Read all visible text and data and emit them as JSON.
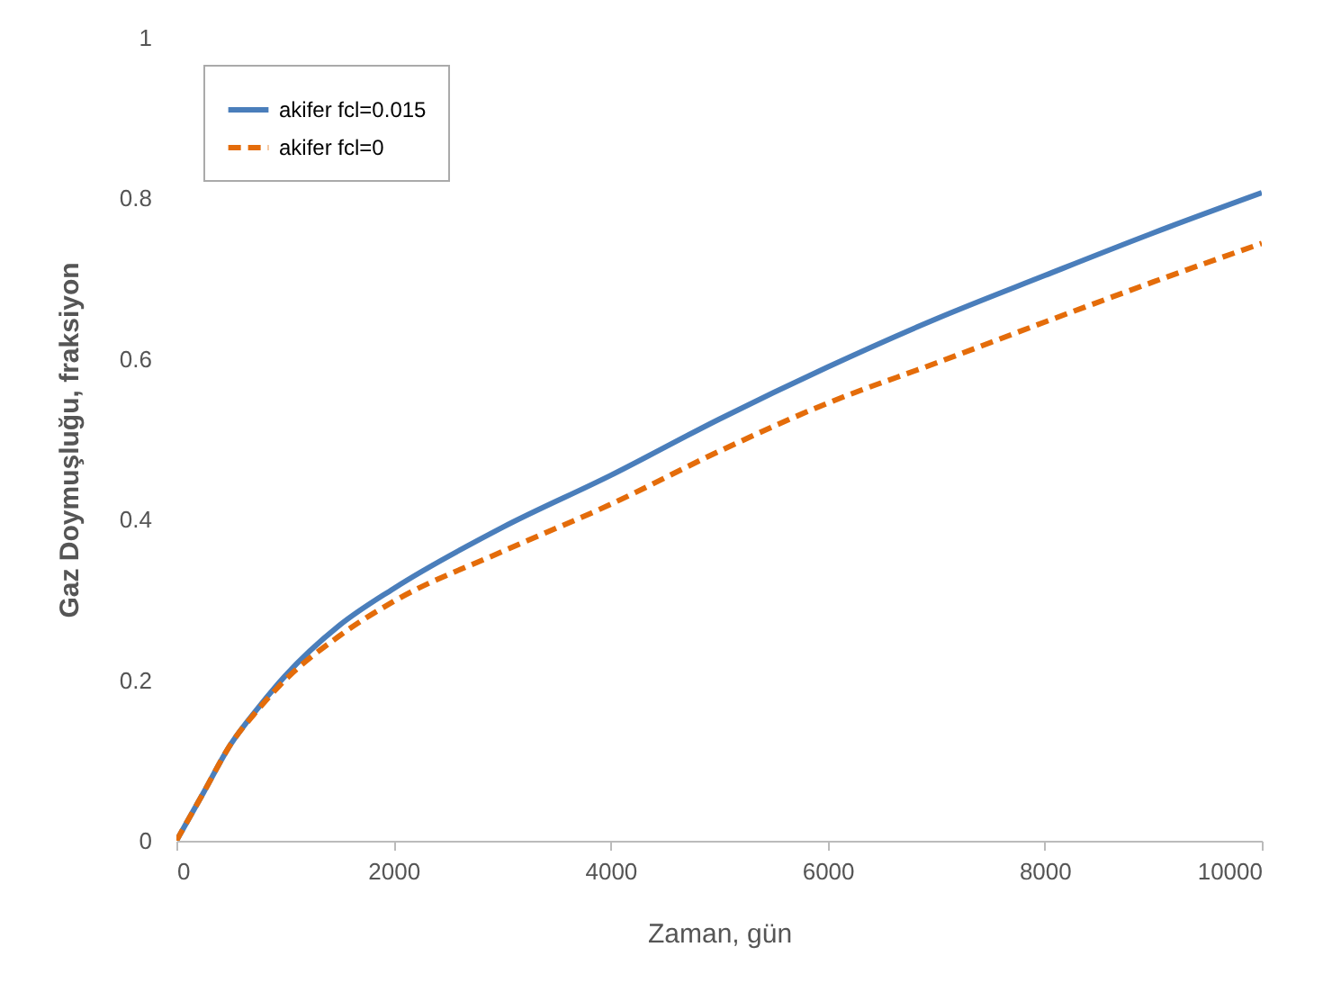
{
  "chart_data": {
    "type": "line",
    "xlabel": "Zaman, gün",
    "ylabel": "Gaz Doymuşluğu, fraksiyon",
    "x": [
      0,
      250,
      500,
      750,
      1000,
      1500,
      2000,
      3000,
      4000,
      5000,
      6000,
      7000,
      8000,
      9000,
      10000
    ],
    "series": [
      {
        "name": "akifer fcl=0.015",
        "color": "#4a7ebb",
        "line_style": "solid",
        "values": [
          0,
          0.06,
          0.12,
          0.165,
          0.205,
          0.268,
          0.314,
          0.39,
          0.455,
          0.525,
          0.59,
          0.65,
          0.704,
          0.757,
          0.807
        ]
      },
      {
        "name": "akifer fcl=0",
        "color": "#e46c0a",
        "line_style": "dashed",
        "values": [
          0,
          0.06,
          0.12,
          0.163,
          0.2,
          0.255,
          0.298,
          0.36,
          0.419,
          0.485,
          0.545,
          0.595,
          0.646,
          0.696,
          0.744
        ]
      }
    ],
    "xlim": [
      0,
      10000
    ],
    "xticks": [
      0,
      2000,
      4000,
      6000,
      8000,
      10000
    ],
    "ylim": [
      0,
      1
    ],
    "yticks": [
      0,
      0.2,
      0.4,
      0.6,
      0.8,
      1
    ],
    "grid": false,
    "legend": "top left"
  }
}
